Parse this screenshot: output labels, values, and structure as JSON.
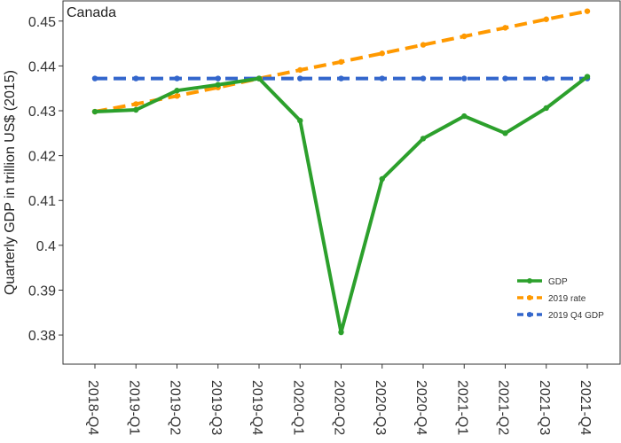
{
  "chart_data": {
    "type": "line",
    "title": "Canada",
    "ylabel": "Quarterly GDP in trillion US$ (2015)",
    "xlabel": "",
    "categories": [
      "2018-Q4",
      "2019-Q1",
      "2019-Q2",
      "2019-Q3",
      "2019-Q4",
      "2020-Q1",
      "2020-Q2",
      "2020-Q3",
      "2020-Q4",
      "2021-Q1",
      "2021-Q2",
      "2021-Q3",
      "2021-Q4"
    ],
    "ylim": [
      0.3735,
      0.4545
    ],
    "yticks": [
      0.38,
      0.39,
      0.4,
      0.41,
      0.42,
      0.43,
      0.44,
      0.45
    ],
    "ytick_labels": [
      "0.38",
      "0.39",
      "0.4",
      "0.41",
      "0.42",
      "0.43",
      "0.44",
      "0.45"
    ],
    "grid": false,
    "legend_position": "bottom-right",
    "series": [
      {
        "name": "GDP",
        "color": "#2ca02c",
        "style": "solid",
        "values": [
          0.4298,
          0.4302,
          0.4345,
          0.4358,
          0.4372,
          0.4278,
          0.3806,
          0.4148,
          0.4238,
          0.4288,
          0.425,
          0.4306,
          0.4376
        ]
      },
      {
        "name": "2019 rate",
        "color": "#ff9900",
        "style": "dashed",
        "values": [
          0.4298,
          0.4315,
          0.4333,
          0.4352,
          0.4372,
          0.4391,
          0.4409,
          0.4428,
          0.4447,
          0.4466,
          0.4485,
          0.4504,
          0.4522
        ]
      },
      {
        "name": "2019 Q4 GDP",
        "color": "#3366cc",
        "style": "dashed",
        "values": [
          0.4372,
          0.4372,
          0.4372,
          0.4372,
          0.4372,
          0.4372,
          0.4372,
          0.4372,
          0.4372,
          0.4372,
          0.4372,
          0.4372,
          0.4372
        ]
      }
    ]
  }
}
